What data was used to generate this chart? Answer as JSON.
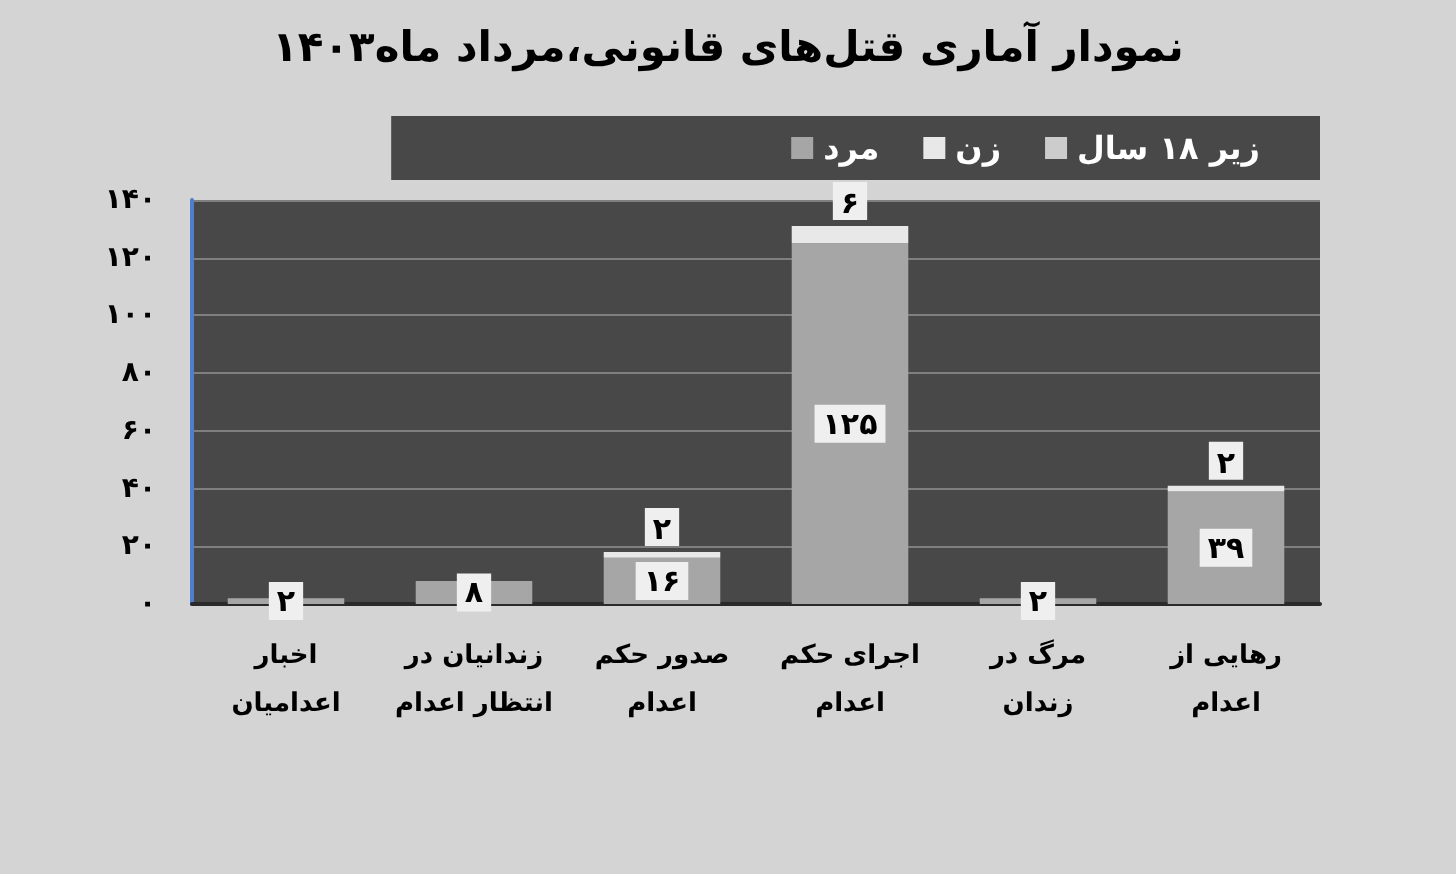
{
  "chart_data": {
    "type": "bar",
    "title": "نمودار آماری قتل‌های قانونی،مرداد ماه۱۴۰۳",
    "categories": [
      "اخبار اعدامیان",
      "زندانیان در انتظار اعدام",
      "صدور حکم اعدام",
      "اجرای حکم اعدام",
      "مرگ در زندان",
      "رهایی از اعدام"
    ],
    "series": [
      {
        "name": "مرد",
        "color": "#a6a6a6",
        "values": [
          2,
          8,
          16,
          125,
          2,
          39
        ],
        "value_labels": [
          "۲",
          "۸",
          "۱۶",
          "۱۲۵",
          "۲",
          "۳۹"
        ]
      },
      {
        "name": "زن",
        "color": "#e8e8e8",
        "values": [
          null,
          null,
          2,
          6,
          null,
          2
        ],
        "value_labels": [
          null,
          null,
          "۲",
          "۶",
          null,
          "۲"
        ]
      },
      {
        "name": "زیر ۱۸ سال",
        "color": "#cccccc",
        "values": [
          null,
          null,
          null,
          null,
          null,
          null
        ]
      }
    ],
    "stacked": true,
    "ylim": [
      0,
      140
    ],
    "yticks": [
      {
        "value": 0,
        "label": "۰"
      },
      {
        "value": 20,
        "label": "۲۰"
      },
      {
        "value": 40,
        "label": "۴۰"
      },
      {
        "value": 60,
        "label": "۶۰"
      },
      {
        "value": 80,
        "label": "۸۰"
      },
      {
        "value": 100,
        "label": "۱۰۰"
      },
      {
        "value": 120,
        "label": "۱۲۰"
      },
      {
        "value": 140,
        "label": "۱۴۰"
      }
    ],
    "grid": "y",
    "legend": "top right"
  }
}
